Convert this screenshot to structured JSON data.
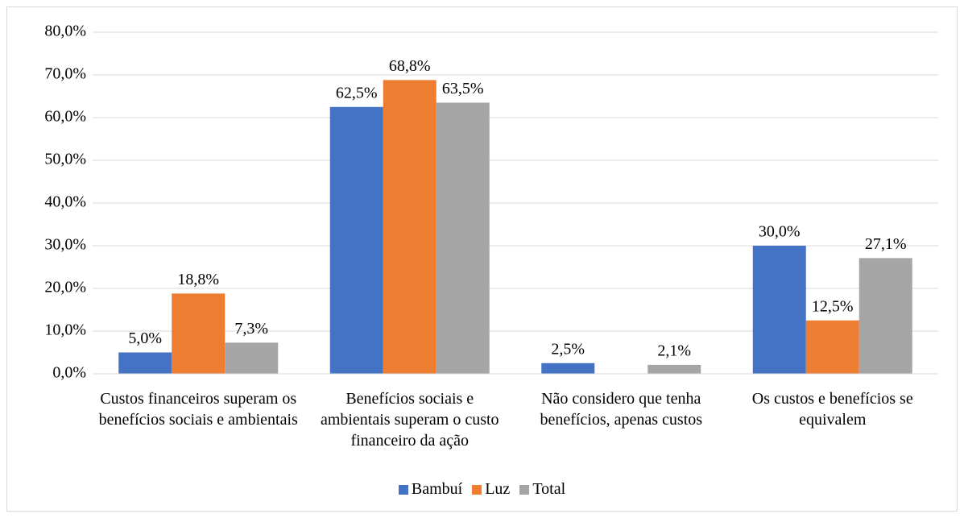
{
  "chart_data": {
    "type": "bar",
    "categories": [
      "Custos financeiros superam os benefícios sociais e ambientais",
      "Benefícios sociais e ambientais superam o custo financeiro da ação",
      "Não considero que tenha benefícios, apenas custos",
      "Os custos e benefícios se equivalem"
    ],
    "series": [
      {
        "name": "Bambuí",
        "color": "#4472c4",
        "values": [
          5.0,
          62.5,
          2.5,
          30.0
        ],
        "value_labels": [
          "5,0%",
          "62,5%",
          "2,5%",
          "30,0%"
        ]
      },
      {
        "name": "Luz",
        "color": "#ed7d31",
        "values": [
          18.8,
          68.8,
          null,
          12.5
        ],
        "value_labels": [
          "18,8%",
          "68,8%",
          null,
          "12,5%"
        ]
      },
      {
        "name": "Total",
        "color": "#a5a5a5",
        "values": [
          7.3,
          63.5,
          2.1,
          27.1
        ],
        "value_labels": [
          "7,3%",
          "63,5%",
          "2,1%",
          "27,1%"
        ]
      }
    ],
    "ylim": [
      0,
      80
    ],
    "yticks": [
      {
        "value": 0,
        "label": "0,0%"
      },
      {
        "value": 10,
        "label": "10,0%"
      },
      {
        "value": 20,
        "label": "20,0%"
      },
      {
        "value": 30,
        "label": "30,0%"
      },
      {
        "value": 40,
        "label": "40,0%"
      },
      {
        "value": 50,
        "label": "50,0%"
      },
      {
        "value": 60,
        "label": "60,0%"
      },
      {
        "value": 70,
        "label": "70,0%"
      },
      {
        "value": 80,
        "label": "80,0%"
      }
    ],
    "grid": true,
    "legend": "bottom"
  }
}
